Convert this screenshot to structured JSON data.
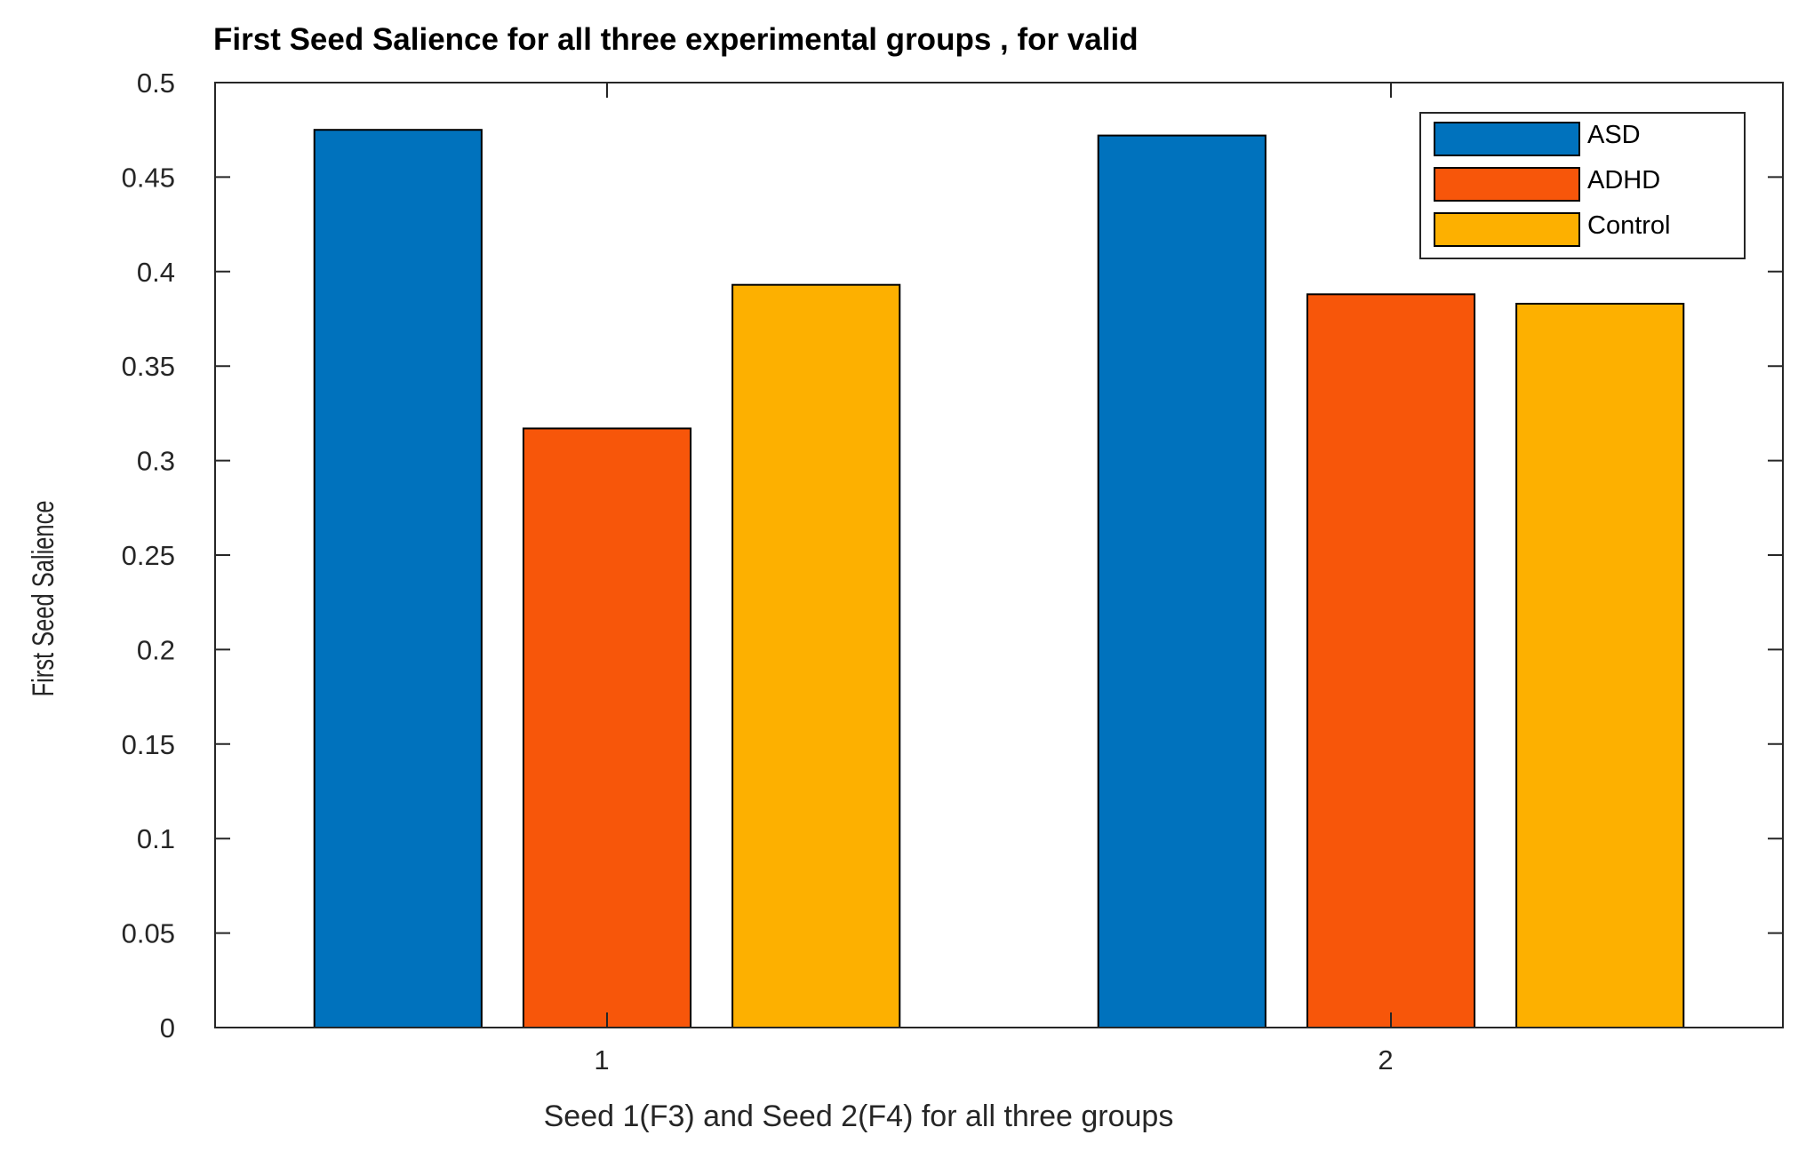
{
  "chart_data": {
    "type": "bar",
    "title": "First Seed Salience for all three experimental groups , for valid",
    "xlabel": "Seed 1(F3) and Seed 2(F4) for all three groups",
    "ylabel": "First Seed Salience",
    "categories": [
      "1",
      "2"
    ],
    "series": [
      {
        "name": "ASD",
        "color": "#0072BD",
        "values": [
          0.475,
          0.472
        ]
      },
      {
        "name": "ADHD",
        "color": "#F7560A",
        "values": [
          0.317,
          0.388
        ]
      },
      {
        "name": "Control",
        "color": "#FDB000",
        "values": [
          0.393,
          0.383
        ]
      }
    ],
    "ylim": [
      0,
      0.5
    ],
    "yticks": [
      0,
      0.05,
      0.1,
      0.15,
      0.2,
      0.25,
      0.3,
      0.35,
      0.4,
      0.45,
      0.5
    ],
    "ytick_labels": [
      "0",
      "0.05",
      "0.1",
      "0.15",
      "0.2",
      "0.25",
      "0.3",
      "0.35",
      "0.4",
      "0.45",
      "0.5"
    ],
    "grid": false,
    "legend_position": "top-right"
  }
}
